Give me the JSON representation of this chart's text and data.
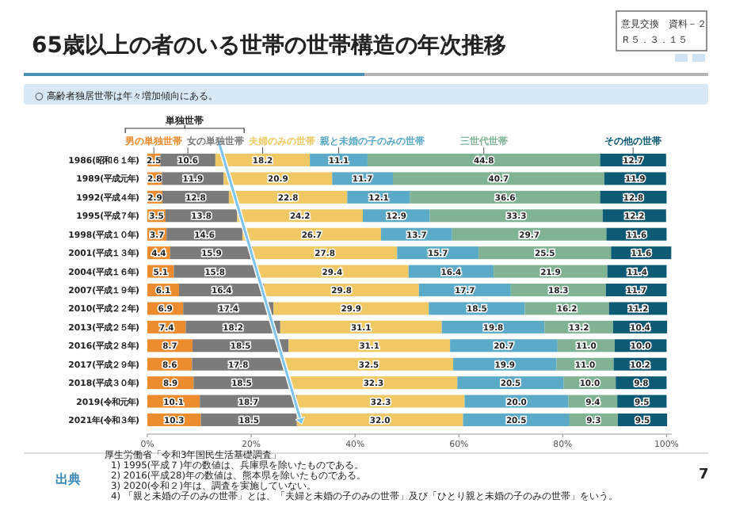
{
  "chart_data": {
    "type": "bar",
    "orientation": "horizontal",
    "stacked": true,
    "title": "65歳以上の者のいる世帯の世帯構造の年次推移",
    "subtitle": "○ 高齢者独居世帯は年々増加傾向にある。",
    "annotations": [
      "意見交換　資料－２",
      "Ｒ５．３．１５",
      "単独世帯",
      "出典",
      "厚生労働省「令和3年国民生活基礎調査」",
      "1) 1995(平成７)年の数値は、兵庫県を除いたものである。",
      "2) 2016(平成28)年の数値は、熊本県を除いたものである。",
      "3) 2020(令和２)年は、調査を実施していない。",
      "4) 「親と未婚の子のみの世帯」とは、「夫婦と未婚の子のみの世帯」及び「ひとり親と未婚の子のみの世帯」をいう。",
      "7"
    ],
    "categories": [
      "1986(昭和６１年)",
      "1989(平成元年)",
      "1992(平成４年)",
      "1995(平成７年)",
      "1998(平成１０年)",
      "2001(平成１３年)",
      "2004(平成１６年)",
      "2007(平成１９年)",
      "2010(平成２２年)",
      "2013(平成２５年)",
      "2016(平成２８年)",
      "2017(平成２９年)",
      "2018(平成３０年)",
      "2019(令和元年)",
      "2021年(令和３年)"
    ],
    "series": [
      {
        "name": "男の単独世帯",
        "color": "#ed8b2f",
        "values": [
          2.5,
          2.8,
          2.9,
          3.5,
          3.7,
          4.4,
          5.1,
          6.1,
          6.9,
          7.4,
          8.7,
          8.6,
          8.9,
          10.1,
          10.3
        ],
        "value_labels": [
          "2.5",
          "2.8",
          "2.9",
          "3.5",
          "3.7",
          "4.4",
          "5.1",
          "6.1",
          "6.9",
          "7.4",
          "8.7",
          "8.6",
          "8.9",
          "10.1",
          "10.3"
        ]
      },
      {
        "name": "女の単独世帯",
        "color": "#7b7b7b",
        "values": [
          10.6,
          11.9,
          12.8,
          13.8,
          14.6,
          15.9,
          15.8,
          16.4,
          17.4,
          18.2,
          18.5,
          17.8,
          18.5,
          18.7,
          18.5
        ],
        "value_labels": [
          "10.6",
          "11.9",
          "12.8",
          "13.8",
          "14.6",
          "15.9",
          "15.8",
          "16.4",
          "17.4",
          "18.2",
          "18.5",
          "17.8",
          "18.5",
          "18.7",
          "18.5"
        ]
      },
      {
        "name": "夫婦のみの世帯",
        "color": "#f0c964",
        "values": [
          18.2,
          20.9,
          22.8,
          24.2,
          26.7,
          27.8,
          29.4,
          29.8,
          29.9,
          31.1,
          31.1,
          32.5,
          32.3,
          32.3,
          32.0
        ],
        "value_labels": [
          "18.2",
          "20.9",
          "22.8",
          "24.2",
          "26.7",
          "27.8",
          "29.4",
          "29.8",
          "29.9",
          "31.1",
          "31.1",
          "32.5",
          "32.3",
          "32.3",
          "32.0"
        ]
      },
      {
        "name": "親と未婚の子のみの世帯",
        "color": "#5aaac8",
        "values": [
          11.1,
          11.7,
          12.1,
          12.9,
          13.7,
          15.7,
          16.4,
          17.7,
          18.5,
          19.8,
          20.7,
          19.9,
          20.5,
          20.0,
          20.5
        ],
        "value_labels": [
          "11.1",
          "11.7",
          "12.1",
          "12.9",
          "13.7",
          "15.7",
          "16.4",
          "17.7",
          "18.5",
          "19.8",
          "20.7",
          "19.9",
          "20.5",
          "20.0",
          "20.5"
        ]
      },
      {
        "name": "三世代世帯",
        "color": "#7fb394",
        "values": [
          44.8,
          40.7,
          36.6,
          33.3,
          29.7,
          25.5,
          21.9,
          18.3,
          16.2,
          13.2,
          11.0,
          11.0,
          10.0,
          9.4,
          9.3
        ],
        "value_labels": [
          "44.8",
          "40.7",
          "36.6",
          "33.3",
          "29.7",
          "25.5",
          "21.9",
          "18.3",
          "16.2",
          "13.2",
          "11.0",
          "11.0",
          "10.0",
          "9.4",
          "9.3"
        ]
      },
      {
        "name": "その他の世帯",
        "color": "#0c5a74",
        "values": [
          12.7,
          11.9,
          12.8,
          12.2,
          11.6,
          11.6,
          11.4,
          11.7,
          11.2,
          10.4,
          10.0,
          10.2,
          9.8,
          9.5,
          9.5
        ],
        "value_labels": [
          "12.7",
          "11.9",
          "12.8",
          "12.2",
          "11.6",
          "11.6",
          "11.4",
          "11.7",
          "11.2",
          "10.4",
          "10.0",
          "10.2",
          "9.8",
          "9.5",
          "9.5"
        ]
      }
    ],
    "xlim": [
      0,
      101
    ],
    "xticks": [
      {
        "value": 0,
        "label": "0%"
      },
      {
        "value": 20,
        "label": "20%"
      },
      {
        "value": 40,
        "label": "40%"
      },
      {
        "value": 60,
        "label": "60%"
      },
      {
        "value": 80,
        "label": "80%"
      },
      {
        "value": 100,
        "label": "100%"
      }
    ],
    "legend": "top"
  }
}
